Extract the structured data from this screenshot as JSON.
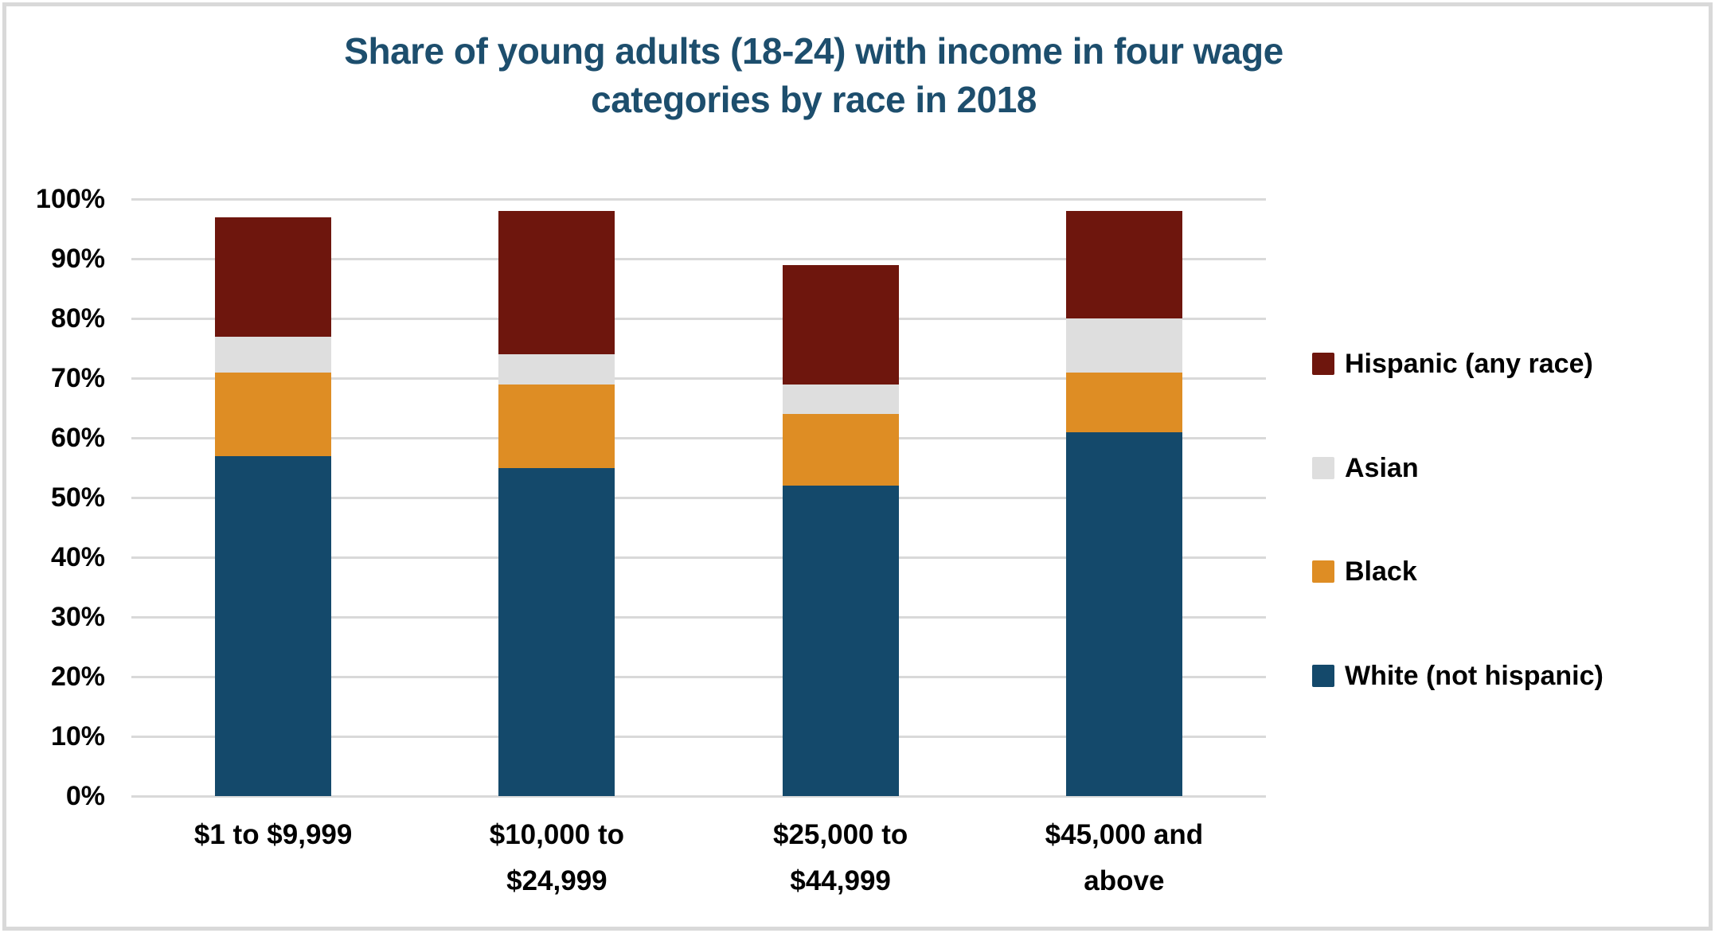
{
  "frame": {
    "border_color": "#d9d9d9",
    "background": "#ffffff"
  },
  "title": {
    "lines": [
      "Share of young adults (18-24) with income in four wage",
      "categories by race in 2018"
    ],
    "color": "#1d4e6d"
  },
  "chart_data": {
    "type": "bar",
    "stacked": true,
    "title": "Share of young adults (18-24) with income in four wage categories by race in 2018",
    "categories": [
      "$1 to $9,999",
      "$10,000 to $24,999",
      "$25,000 to $44,999",
      "$45,000 and above"
    ],
    "categories_wrapped": [
      [
        "$1 to $9,999"
      ],
      [
        "$10,000 to",
        "$24,999"
      ],
      [
        "$25,000 to",
        "$44,999"
      ],
      [
        "$45,000 and",
        "above"
      ]
    ],
    "series": [
      {
        "name": "White (not hispanic)",
        "color": "#14496b",
        "values": [
          57,
          55,
          52,
          61
        ]
      },
      {
        "name": "Black",
        "color": "#de8d24",
        "values": [
          14,
          14,
          12,
          10
        ]
      },
      {
        "name": "Asian",
        "color": "#dedede",
        "values": [
          6,
          5,
          5,
          9
        ]
      },
      {
        "name": "Hispanic (any race)",
        "color": "#6e160d",
        "values": [
          20,
          24,
          20,
          18
        ]
      }
    ],
    "stack_totals": [
      97,
      98,
      89,
      98
    ],
    "xlabel": "",
    "ylabel": "",
    "ylim": [
      0,
      100
    ],
    "ytick_step": 10,
    "ytick_labels": [
      "0%",
      "10%",
      "20%",
      "30%",
      "40%",
      "50%",
      "60%",
      "70%",
      "80%",
      "90%",
      "100%"
    ],
    "grid": true,
    "gridline_color": "#d9d9d9",
    "legend_position": "right",
    "legend_order": [
      "Hispanic (any race)",
      "Asian",
      "Black",
      "White (not hispanic)"
    ]
  }
}
